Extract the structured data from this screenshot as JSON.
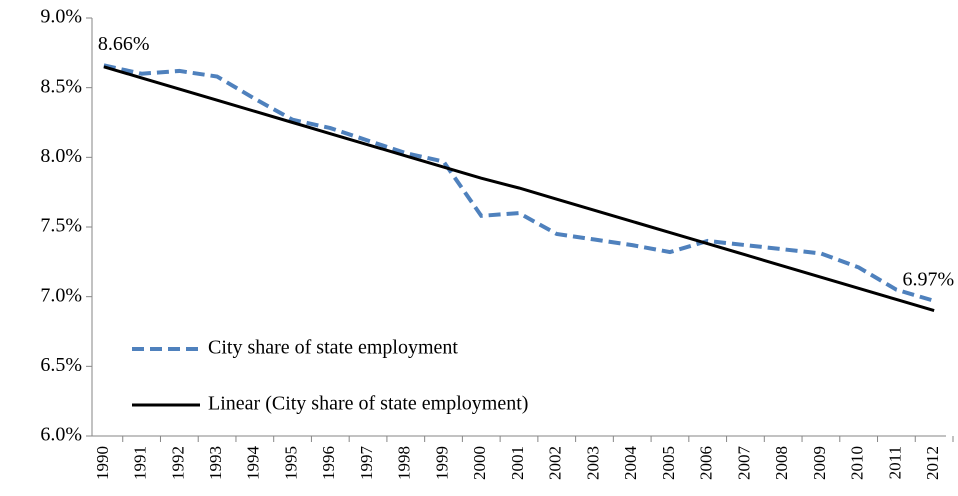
{
  "chart_data": {
    "type": "line",
    "categories": [
      "1990",
      "1991",
      "1992",
      "1993",
      "1994",
      "1995",
      "1996",
      "1997",
      "1998",
      "1999",
      "2000",
      "2001",
      "2002",
      "2003",
      "2004",
      "2005",
      "2006",
      "2007",
      "2008",
      "2009",
      "2010",
      "2011",
      "2012"
    ],
    "series": [
      {
        "name": "City share of state employment",
        "color": "#4f81bd",
        "dash": true,
        "values": [
          8.66,
          8.6,
          8.62,
          8.58,
          8.42,
          8.27,
          8.21,
          8.12,
          8.03,
          7.97,
          7.58,
          7.6,
          7.45,
          7.41,
          7.37,
          7.32,
          7.4,
          7.37,
          7.34,
          7.31,
          7.21,
          7.05,
          6.97
        ],
        "value_labels": [
          "8.66%",
          null,
          null,
          null,
          null,
          null,
          null,
          null,
          null,
          null,
          null,
          null,
          null,
          null,
          null,
          null,
          null,
          null,
          null,
          null,
          null,
          null,
          "6.97%"
        ]
      },
      {
        "name": "Linear (City share of state employment)",
        "color": "#000000",
        "dash": false,
        "values": [
          8.65,
          8.57,
          8.49,
          8.41,
          8.33,
          8.25,
          8.17,
          8.09,
          8.01,
          7.93,
          7.85,
          7.78,
          7.7,
          7.62,
          7.54,
          7.46,
          7.38,
          7.3,
          7.22,
          7.14,
          7.06,
          6.98,
          6.9
        ]
      }
    ],
    "ylim": [
      6,
      9
    ],
    "yticks": [
      {
        "value": 6,
        "label": "6.0%"
      },
      {
        "value": 6.5,
        "label": "6.5%"
      },
      {
        "value": 7,
        "label": "7.0%"
      },
      {
        "value": 7.5,
        "label": "7.5%"
      },
      {
        "value": 8,
        "label": "8.0%"
      },
      {
        "value": 8.5,
        "label": "8.5%"
      },
      {
        "value": 9,
        "label": "9.0%"
      }
    ],
    "grid": false,
    "legend": "lower left"
  }
}
